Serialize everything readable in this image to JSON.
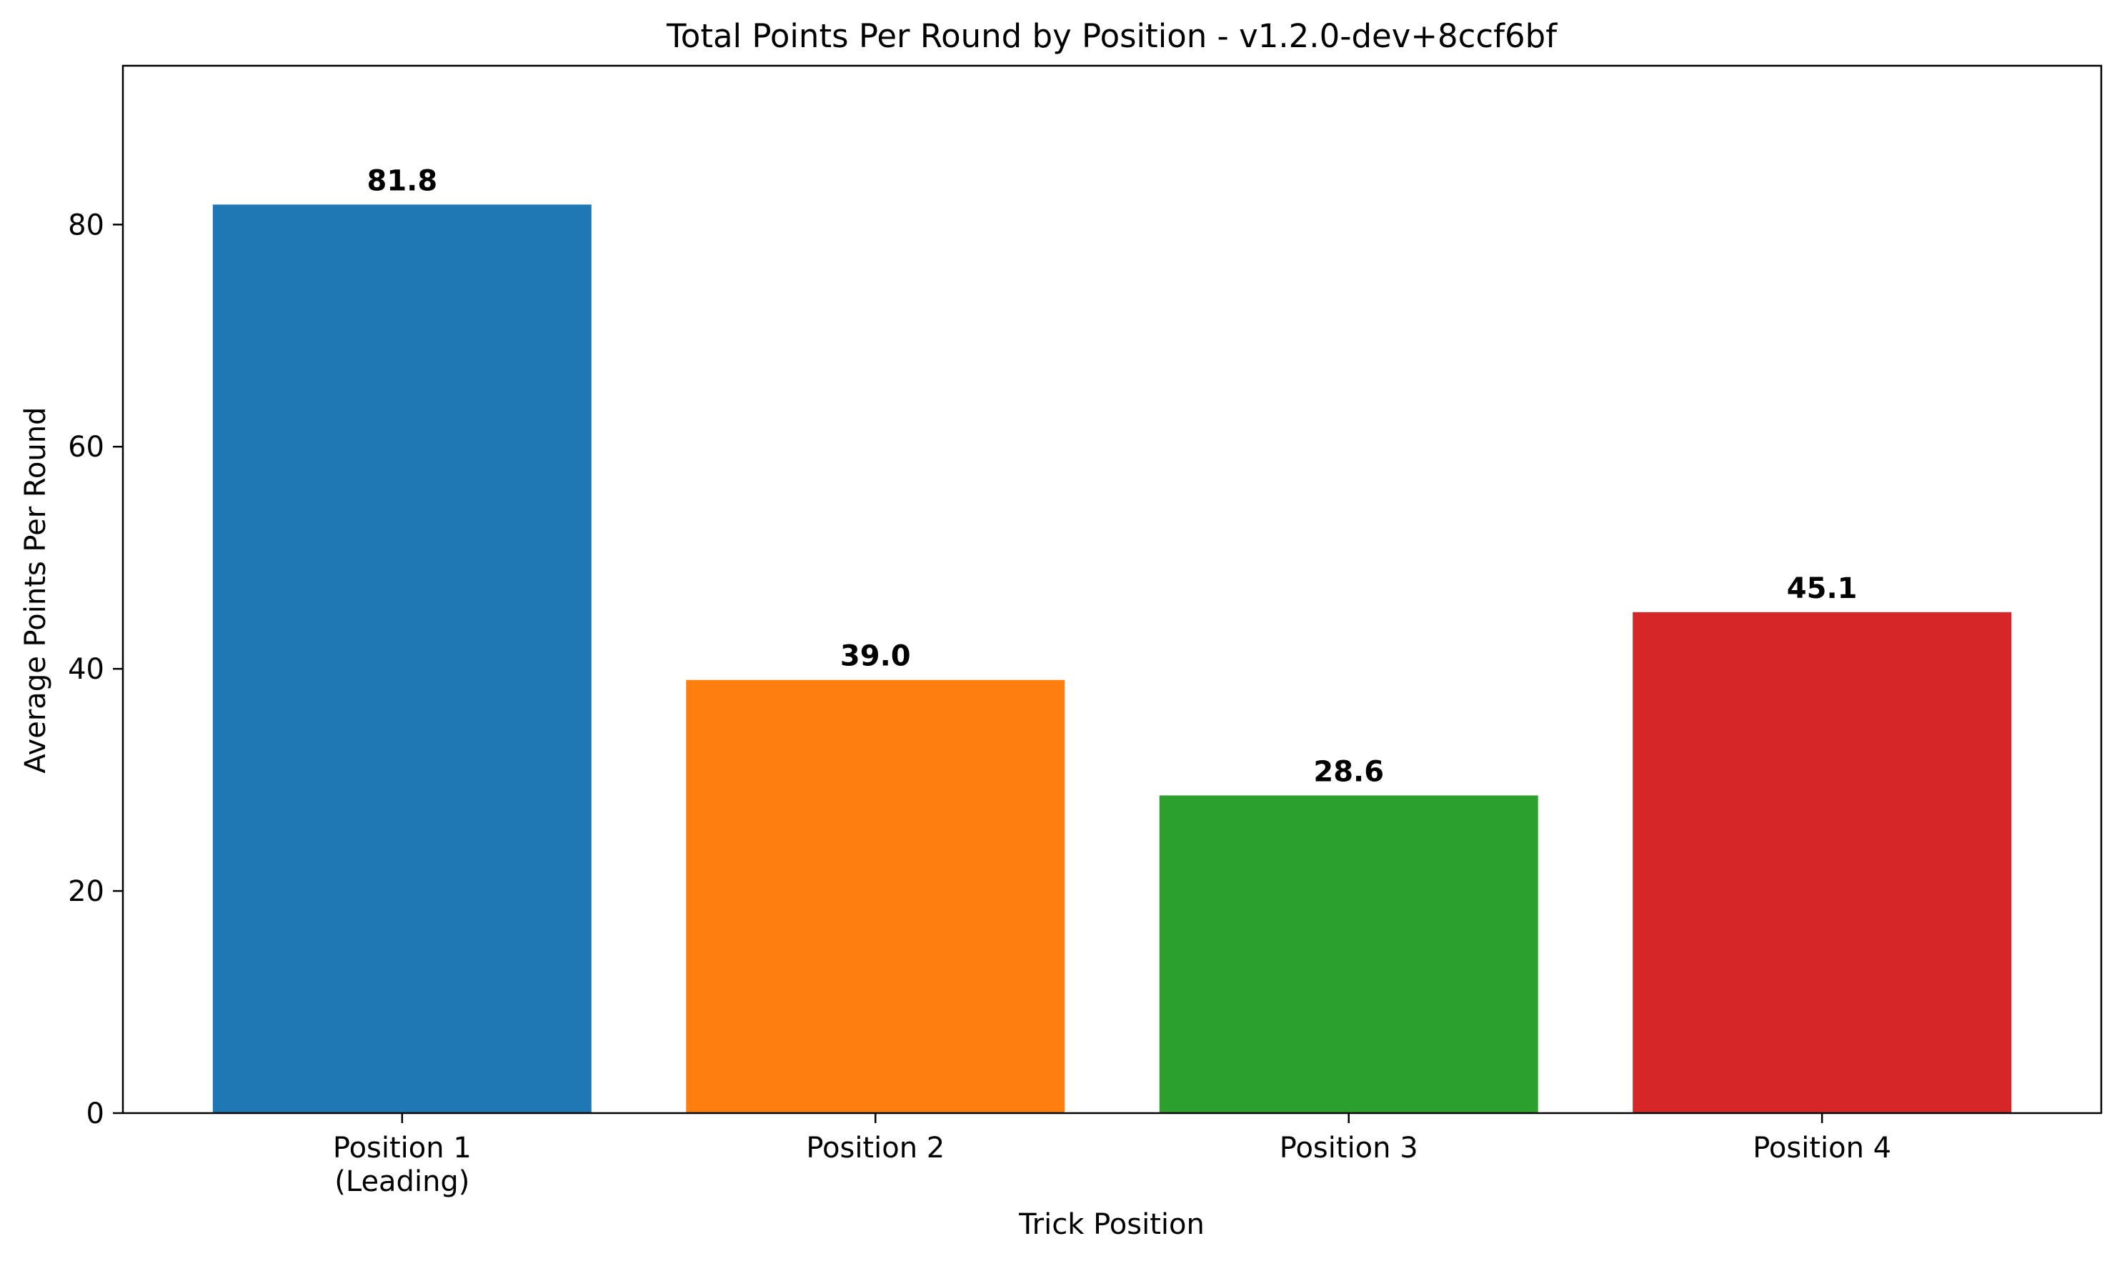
{
  "chart_data": {
    "type": "bar",
    "title": "Total Points Per Round by Position - v1.2.0-dev+8ccf6bf",
    "xlabel": "Trick Position",
    "ylabel": "Average Points Per Round",
    "categories": [
      [
        "Position 1",
        "(Leading)"
      ],
      [
        "Position 2"
      ],
      [
        "Position 3"
      ],
      [
        "Position 4"
      ]
    ],
    "values": [
      81.8,
      39.0,
      28.6,
      45.1
    ],
    "data_labels": [
      "81.8",
      "39.0",
      "28.6",
      "45.1"
    ],
    "colors": [
      "#1f77b4",
      "#ff7f0e",
      "#2ca02c",
      "#d62728"
    ],
    "ylim": [
      0,
      94.3
    ],
    "yticks": [
      0,
      20,
      40,
      60,
      80
    ],
    "ytick_labels": [
      "0",
      "20",
      "40",
      "60",
      "80"
    ],
    "grid": false,
    "legend": "none"
  }
}
